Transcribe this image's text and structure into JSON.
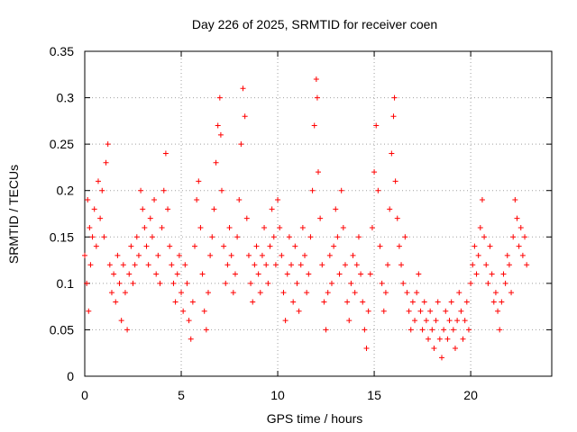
{
  "chart_data": {
    "type": "scatter",
    "title": "Day 226 of 2025, SRMTID for receiver coen",
    "xlabel": "GPS time / hours",
    "ylabel": "SRMTID / TECUs",
    "xlim": [
      0,
      24.2
    ],
    "ylim": [
      0,
      0.35
    ],
    "xticks": [
      0,
      5,
      10,
      15,
      20
    ],
    "xtick_labels": [
      "0",
      "5",
      "10",
      "15",
      "20"
    ],
    "yticks": [
      0,
      0.05,
      0.1,
      0.15,
      0.2,
      0.25,
      0.3,
      0.35
    ],
    "ytick_labels": [
      "0",
      "0.05",
      "0.1",
      "0.15",
      "0.2",
      "0.25",
      "0.3",
      "0.35"
    ],
    "grid": true,
    "marker": "+",
    "color": "#ff0000",
    "series": [
      {
        "name": "SRMTID",
        "points": [
          [
            0.0,
            0.13
          ],
          [
            0.1,
            0.1
          ],
          [
            0.15,
            0.19
          ],
          [
            0.2,
            0.07
          ],
          [
            0.25,
            0.16
          ],
          [
            0.3,
            0.12
          ],
          [
            0.4,
            0.15
          ],
          [
            0.5,
            0.18
          ],
          [
            0.6,
            0.14
          ],
          [
            0.7,
            0.21
          ],
          [
            0.8,
            0.17
          ],
          [
            0.9,
            0.2
          ],
          [
            1.0,
            0.15
          ],
          [
            1.1,
            0.23
          ],
          [
            1.2,
            0.25
          ],
          [
            1.3,
            0.12
          ],
          [
            1.4,
            0.09
          ],
          [
            1.5,
            0.11
          ],
          [
            1.6,
            0.08
          ],
          [
            1.7,
            0.13
          ],
          [
            1.8,
            0.1
          ],
          [
            1.9,
            0.06
          ],
          [
            2.0,
            0.12
          ],
          [
            2.1,
            0.09
          ],
          [
            2.2,
            0.05
          ],
          [
            2.3,
            0.11
          ],
          [
            2.4,
            0.14
          ],
          [
            2.5,
            0.1
          ],
          [
            2.6,
            0.12
          ],
          [
            2.7,
            0.15
          ],
          [
            2.8,
            0.13
          ],
          [
            2.9,
            0.2
          ],
          [
            3.0,
            0.18
          ],
          [
            3.1,
            0.16
          ],
          [
            3.2,
            0.14
          ],
          [
            3.3,
            0.12
          ],
          [
            3.4,
            0.17
          ],
          [
            3.5,
            0.15
          ],
          [
            3.6,
            0.19
          ],
          [
            3.7,
            0.11
          ],
          [
            3.8,
            0.13
          ],
          [
            3.9,
            0.1
          ],
          [
            4.0,
            0.16
          ],
          [
            4.1,
            0.2
          ],
          [
            4.2,
            0.24
          ],
          [
            4.3,
            0.18
          ],
          [
            4.4,
            0.14
          ],
          [
            4.5,
            0.12
          ],
          [
            4.6,
            0.1
          ],
          [
            4.7,
            0.08
          ],
          [
            4.8,
            0.11
          ],
          [
            4.9,
            0.13
          ],
          [
            5.0,
            0.09
          ],
          [
            5.1,
            0.07
          ],
          [
            5.2,
            0.12
          ],
          [
            5.3,
            0.1
          ],
          [
            5.4,
            0.06
          ],
          [
            5.5,
            0.04
          ],
          [
            5.6,
            0.08
          ],
          [
            5.7,
            0.14
          ],
          [
            5.8,
            0.19
          ],
          [
            5.9,
            0.21
          ],
          [
            6.0,
            0.16
          ],
          [
            6.1,
            0.11
          ],
          [
            6.2,
            0.07
          ],
          [
            6.3,
            0.05
          ],
          [
            6.4,
            0.09
          ],
          [
            6.5,
            0.13
          ],
          [
            6.6,
            0.15
          ],
          [
            6.7,
            0.18
          ],
          [
            6.8,
            0.23
          ],
          [
            6.9,
            0.27
          ],
          [
            7.0,
            0.3
          ],
          [
            7.05,
            0.26
          ],
          [
            7.1,
            0.2
          ],
          [
            7.2,
            0.14
          ],
          [
            7.3,
            0.1
          ],
          [
            7.4,
            0.12
          ],
          [
            7.5,
            0.16
          ],
          [
            7.6,
            0.13
          ],
          [
            7.7,
            0.09
          ],
          [
            7.8,
            0.11
          ],
          [
            7.9,
            0.15
          ],
          [
            8.0,
            0.19
          ],
          [
            8.1,
            0.25
          ],
          [
            8.2,
            0.31
          ],
          [
            8.3,
            0.28
          ],
          [
            8.4,
            0.17
          ],
          [
            8.5,
            0.13
          ],
          [
            8.6,
            0.1
          ],
          [
            8.7,
            0.08
          ],
          [
            8.8,
            0.12
          ],
          [
            8.9,
            0.14
          ],
          [
            9.0,
            0.11
          ],
          [
            9.1,
            0.09
          ],
          [
            9.2,
            0.13
          ],
          [
            9.3,
            0.16
          ],
          [
            9.4,
            0.12
          ],
          [
            9.5,
            0.1
          ],
          [
            9.6,
            0.14
          ],
          [
            9.7,
            0.18
          ],
          [
            9.8,
            0.15
          ],
          [
            9.9,
            0.12
          ],
          [
            10.0,
            0.19
          ],
          [
            10.1,
            0.16
          ],
          [
            10.2,
            0.13
          ],
          [
            10.3,
            0.09
          ],
          [
            10.4,
            0.06
          ],
          [
            10.5,
            0.11
          ],
          [
            10.6,
            0.15
          ],
          [
            10.7,
            0.12
          ],
          [
            10.8,
            0.08
          ],
          [
            10.9,
            0.14
          ],
          [
            11.0,
            0.1
          ],
          [
            11.1,
            0.07
          ],
          [
            11.2,
            0.12
          ],
          [
            11.3,
            0.16
          ],
          [
            11.4,
            0.13
          ],
          [
            11.5,
            0.09
          ],
          [
            11.6,
            0.11
          ],
          [
            11.7,
            0.15
          ],
          [
            11.8,
            0.2
          ],
          [
            11.9,
            0.27
          ],
          [
            12.0,
            0.32
          ],
          [
            12.05,
            0.3
          ],
          [
            12.1,
            0.22
          ],
          [
            12.2,
            0.17
          ],
          [
            12.3,
            0.12
          ],
          [
            12.4,
            0.08
          ],
          [
            12.5,
            0.05
          ],
          [
            12.6,
            0.09
          ],
          [
            12.7,
            0.13
          ],
          [
            12.8,
            0.1
          ],
          [
            12.9,
            0.14
          ],
          [
            13.0,
            0.18
          ],
          [
            13.1,
            0.15
          ],
          [
            13.2,
            0.11
          ],
          [
            13.3,
            0.2
          ],
          [
            13.4,
            0.16
          ],
          [
            13.5,
            0.12
          ],
          [
            13.6,
            0.08
          ],
          [
            13.7,
            0.06
          ],
          [
            13.8,
            0.1
          ],
          [
            13.9,
            0.13
          ],
          [
            14.0,
            0.09
          ],
          [
            14.1,
            0.12
          ],
          [
            14.2,
            0.15
          ],
          [
            14.3,
            0.11
          ],
          [
            14.4,
            0.08
          ],
          [
            14.5,
            0.05
          ],
          [
            14.6,
            0.03
          ],
          [
            14.7,
            0.07
          ],
          [
            14.8,
            0.11
          ],
          [
            14.9,
            0.16
          ],
          [
            15.0,
            0.22
          ],
          [
            15.1,
            0.27
          ],
          [
            15.2,
            0.2
          ],
          [
            15.3,
            0.14
          ],
          [
            15.4,
            0.1
          ],
          [
            15.5,
            0.07
          ],
          [
            15.6,
            0.09
          ],
          [
            15.7,
            0.12
          ],
          [
            15.8,
            0.18
          ],
          [
            15.9,
            0.24
          ],
          [
            16.0,
            0.28
          ],
          [
            16.05,
            0.3
          ],
          [
            16.1,
            0.21
          ],
          [
            16.2,
            0.17
          ],
          [
            16.3,
            0.14
          ],
          [
            16.4,
            0.12
          ],
          [
            16.5,
            0.1
          ],
          [
            16.6,
            0.15
          ],
          [
            16.7,
            0.09
          ],
          [
            16.8,
            0.07
          ],
          [
            16.9,
            0.05
          ],
          [
            17.0,
            0.08
          ],
          [
            17.1,
            0.06
          ],
          [
            17.2,
            0.09
          ],
          [
            17.3,
            0.11
          ],
          [
            17.4,
            0.07
          ],
          [
            17.5,
            0.05
          ],
          [
            17.6,
            0.08
          ],
          [
            17.7,
            0.06
          ],
          [
            17.8,
            0.04
          ],
          [
            17.9,
            0.07
          ],
          [
            18.0,
            0.05
          ],
          [
            18.1,
            0.03
          ],
          [
            18.2,
            0.06
          ],
          [
            18.3,
            0.08
          ],
          [
            18.4,
            0.04
          ],
          [
            18.5,
            0.02
          ],
          [
            18.6,
            0.05
          ],
          [
            18.7,
            0.07
          ],
          [
            18.8,
            0.04
          ],
          [
            18.9,
            0.06
          ],
          [
            19.0,
            0.08
          ],
          [
            19.1,
            0.05
          ],
          [
            19.2,
            0.03
          ],
          [
            19.3,
            0.06
          ],
          [
            19.4,
            0.09
          ],
          [
            19.5,
            0.07
          ],
          [
            19.6,
            0.04
          ],
          [
            19.7,
            0.06
          ],
          [
            19.8,
            0.08
          ],
          [
            19.9,
            0.05
          ],
          [
            20.0,
            0.1
          ],
          [
            20.1,
            0.12
          ],
          [
            20.2,
            0.14
          ],
          [
            20.3,
            0.11
          ],
          [
            20.4,
            0.13
          ],
          [
            20.5,
            0.16
          ],
          [
            20.6,
            0.19
          ],
          [
            20.7,
            0.15
          ],
          [
            20.8,
            0.12
          ],
          [
            20.9,
            0.1
          ],
          [
            21.0,
            0.14
          ],
          [
            21.1,
            0.11
          ],
          [
            21.2,
            0.08
          ],
          [
            21.3,
            0.09
          ],
          [
            21.4,
            0.07
          ],
          [
            21.5,
            0.05
          ],
          [
            21.6,
            0.08
          ],
          [
            21.7,
            0.11
          ],
          [
            21.8,
            0.1
          ],
          [
            21.9,
            0.13
          ],
          [
            22.0,
            0.12
          ],
          [
            22.1,
            0.09
          ],
          [
            22.2,
            0.15
          ],
          [
            22.3,
            0.19
          ],
          [
            22.4,
            0.17
          ],
          [
            22.5,
            0.14
          ],
          [
            22.6,
            0.16
          ],
          [
            22.7,
            0.13
          ],
          [
            22.8,
            0.15
          ],
          [
            22.9,
            0.12
          ]
        ]
      }
    ]
  }
}
